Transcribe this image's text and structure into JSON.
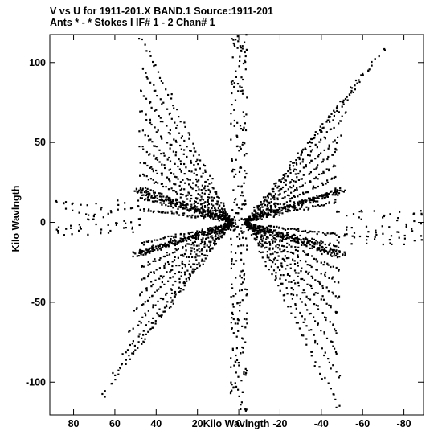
{
  "chart_data": {
    "type": "scatter",
    "title": "V vs U for 1911-201.X BAND.1   Source:1911-201",
    "subtitle": "Ants * - *      Stokes I   IF# 1 - 2   Chan# 1",
    "xlabel": "Kilo Wavlngth",
    "ylabel": "Kilo Wavlngth",
    "xlim": [
      91.5,
      -89.5
    ],
    "ylim": [
      -120.5,
      117.5
    ],
    "x_reversed": true,
    "x_ticks": [
      80,
      60,
      40,
      20,
      0,
      -20,
      -40,
      -60,
      -80
    ],
    "x_tick_labels": [
      "80",
      "60",
      "40",
      "20",
      "0",
      "-20",
      "-40",
      "-60",
      "-80"
    ],
    "y_ticks": [
      -100,
      -50,
      0,
      50,
      100
    ],
    "y_tick_labels": [
      "-100",
      "-50",
      "0",
      "50",
      "100"
    ],
    "grid": false,
    "legend": "none",
    "marker_color": "#000000",
    "fan_arms": {
      "description": "uv-coverage arms: each arm is a baseline track; points sampled uniformly along the track with small jitter",
      "upper_left_arms": [
        {
          "from": [
            4,
            1
          ],
          "to": [
            47,
            115
          ]
        },
        {
          "from": [
            4,
            1
          ],
          "to": [
            47,
            97
          ]
        },
        {
          "from": [
            4,
            1
          ],
          "to": [
            47,
            82
          ]
        },
        {
          "from": [
            4,
            1
          ],
          "to": [
            47,
            69
          ]
        },
        {
          "from": [
            4,
            1
          ],
          "to": [
            47,
            57
          ]
        },
        {
          "from": [
            4,
            1
          ],
          "to": [
            47,
            47
          ]
        },
        {
          "from": [
            4,
            1
          ],
          "to": [
            47,
            38
          ]
        },
        {
          "from": [
            4,
            1
          ],
          "to": [
            47,
            30
          ]
        },
        {
          "from": [
            4,
            1
          ],
          "to": [
            47,
            22
          ]
        },
        {
          "from": [
            4,
            1
          ],
          "to": [
            47,
            15
          ]
        },
        {
          "from": [
            4,
            1
          ],
          "to": [
            47,
            8
          ]
        }
      ],
      "lower_left_arms": [
        {
          "from": [
            4,
            -1
          ],
          "to": [
            66,
            -108
          ]
        },
        {
          "from": [
            4,
            -1
          ],
          "to": [
            60,
            -95
          ]
        },
        {
          "from": [
            4,
            -1
          ],
          "to": [
            55,
            -82
          ]
        },
        {
          "from": [
            4,
            -1
          ],
          "to": [
            52,
            -68
          ]
        },
        {
          "from": [
            4,
            -1
          ],
          "to": [
            50,
            -55
          ]
        },
        {
          "from": [
            4,
            -1
          ],
          "to": [
            48,
            -45
          ]
        },
        {
          "from": [
            4,
            -1
          ],
          "to": [
            47,
            -36
          ]
        },
        {
          "from": [
            4,
            -1
          ],
          "to": [
            47,
            -28
          ]
        },
        {
          "from": [
            4,
            -1
          ],
          "to": [
            47,
            -20
          ]
        },
        {
          "from": [
            4,
            -1
          ],
          "to": [
            47,
            -13
          ]
        }
      ],
      "upper_right_arms": [
        {
          "from": [
            -4,
            1
          ],
          "to": [
            -70,
            108
          ]
        },
        {
          "from": [
            -4,
            1
          ],
          "to": [
            -62,
            95
          ]
        },
        {
          "from": [
            -4,
            1
          ],
          "to": [
            -56,
            82
          ]
        },
        {
          "from": [
            -4,
            1
          ],
          "to": [
            -52,
            68
          ]
        },
        {
          "from": [
            -4,
            1
          ],
          "to": [
            -50,
            55
          ]
        },
        {
          "from": [
            -4,
            1
          ],
          "to": [
            -48,
            45
          ]
        },
        {
          "from": [
            -4,
            1
          ],
          "to": [
            -47,
            36
          ]
        },
        {
          "from": [
            -4,
            1
          ],
          "to": [
            -47,
            28
          ]
        },
        {
          "from": [
            -4,
            1
          ],
          "to": [
            -47,
            20
          ]
        },
        {
          "from": [
            -4,
            1
          ],
          "to": [
            -47,
            13
          ]
        }
      ],
      "lower_right_arms": [
        {
          "from": [
            -4,
            -1
          ],
          "to": [
            -48,
            -115
          ]
        },
        {
          "from": [
            -4,
            -1
          ],
          "to": [
            -48,
            -97
          ]
        },
        {
          "from": [
            -4,
            -1
          ],
          "to": [
            -48,
            -82
          ]
        },
        {
          "from": [
            -4,
            -1
          ],
          "to": [
            -48,
            -69
          ]
        },
        {
          "from": [
            -4,
            -1
          ],
          "to": [
            -48,
            -57
          ]
        },
        {
          "from": [
            -4,
            -1
          ],
          "to": [
            -48,
            -47
          ]
        },
        {
          "from": [
            -4,
            -1
          ],
          "to": [
            -48,
            -38
          ]
        },
        {
          "from": [
            -4,
            -1
          ],
          "to": [
            -48,
            -30
          ]
        },
        {
          "from": [
            -4,
            -1
          ],
          "to": [
            -48,
            -22
          ]
        },
        {
          "from": [
            -4,
            -1
          ],
          "to": [
            -48,
            -15
          ]
        },
        {
          "from": [
            -4,
            -1
          ],
          "to": [
            -48,
            -8
          ]
        }
      ],
      "diagonal_bands": [
        {
          "from": [
            3,
            1
          ],
          "to": [
            50,
            20
          ]
        },
        {
          "from": [
            3,
            -1
          ],
          "to": [
            50,
            -20
          ]
        },
        {
          "from": [
            -3,
            1
          ],
          "to": [
            -50,
            20
          ]
        },
        {
          "from": [
            -3,
            -1
          ],
          "to": [
            -50,
            -20
          ]
        }
      ],
      "vertical_band": {
        "x_range": [
          -4,
          4
        ],
        "y_range": [
          -118,
          118
        ]
      },
      "outer_left_wedge": {
        "x_range": [
          48,
          88
        ],
        "y_range": [
          -8,
          14
        ]
      },
      "outer_right_wedge": {
        "x_range": [
          -48,
          -88
        ],
        "y_range": [
          -14,
          8
        ]
      }
    }
  }
}
